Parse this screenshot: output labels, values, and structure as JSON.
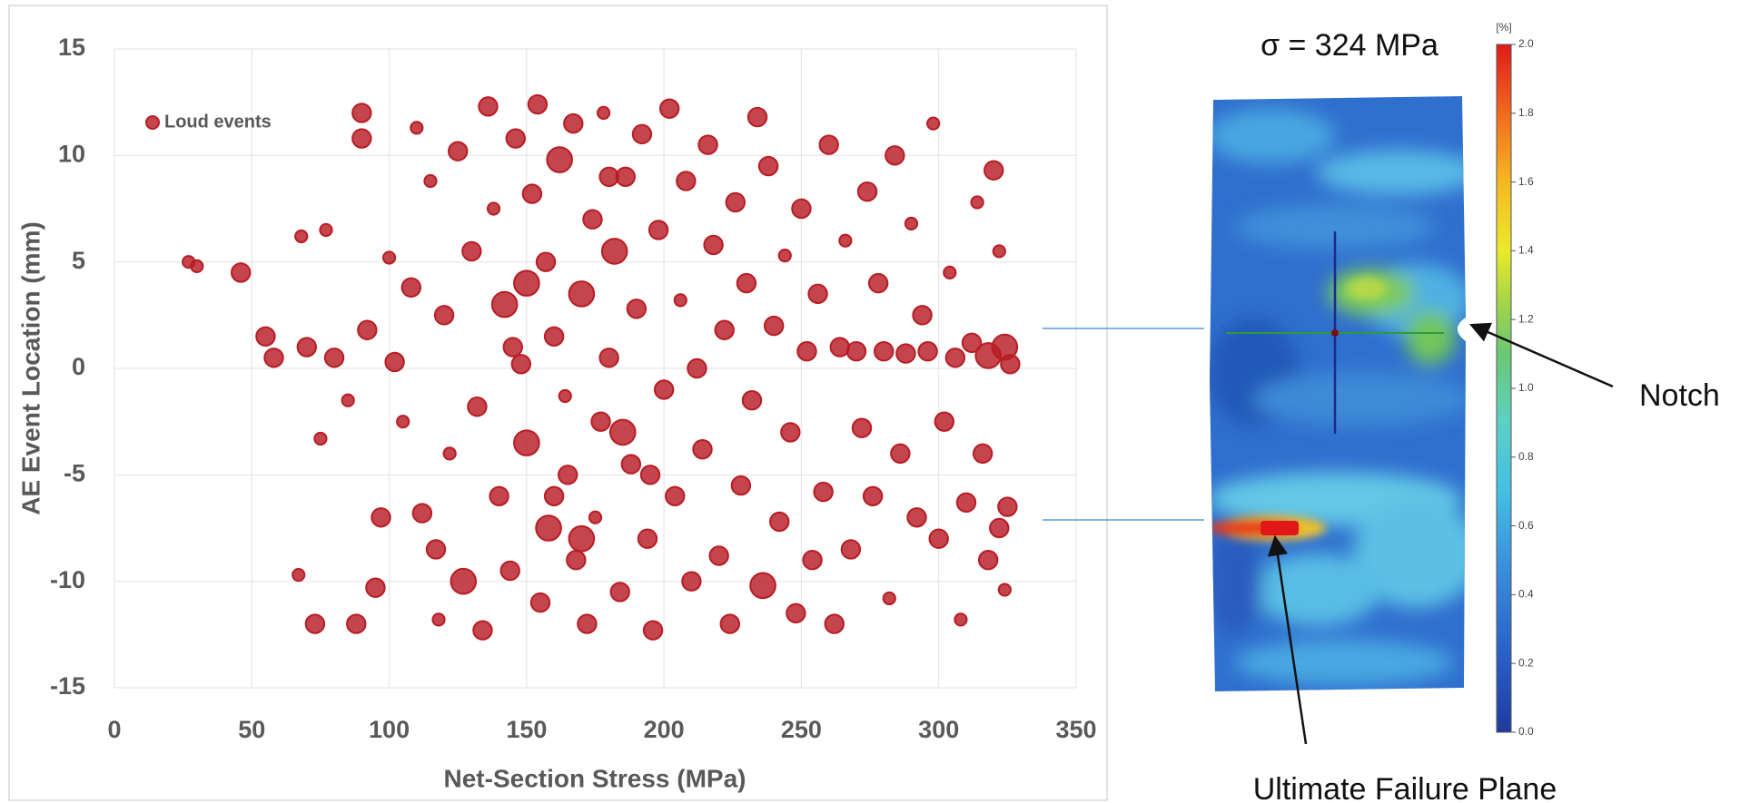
{
  "chart_data": [
    {
      "type": "scatter",
      "xlabel": "Net-Section Stress (MPa)",
      "ylabel": "AE Event Location (mm)",
      "xlim": [
        0,
        350
      ],
      "xticks": [
        0,
        50,
        100,
        150,
        200,
        250,
        300,
        350
      ],
      "ylim": [
        -15,
        15
      ],
      "yticks": [
        -15,
        -10,
        -5,
        0,
        5,
        10,
        15
      ],
      "grid": true,
      "legend": "upper left",
      "series": [
        {
          "name": "Loud events",
          "color": "#b81c24",
          "x": [
            27,
            30,
            46,
            55,
            58,
            68,
            67,
            70,
            73,
            75,
            77,
            80,
            85,
            88,
            90,
            90,
            92,
            95,
            97,
            100,
            102,
            105,
            108,
            110,
            112,
            115,
            117,
            118,
            120,
            122,
            125,
            127,
            130,
            132,
            134,
            136,
            138,
            140,
            142,
            144,
            146,
            148,
            150,
            152,
            154,
            155,
            157,
            158,
            160,
            162,
            164,
            165,
            167,
            168,
            170,
            172,
            174,
            175,
            177,
            178,
            180,
            182,
            184,
            186,
            188,
            190,
            192,
            194,
            196,
            198,
            200,
            202,
            204,
            206,
            208,
            210,
            212,
            214,
            216,
            218,
            220,
            222,
            224,
            226,
            228,
            230,
            232,
            234,
            236,
            238,
            240,
            242,
            244,
            246,
            248,
            250,
            252,
            254,
            256,
            258,
            260,
            262,
            264,
            266,
            268,
            270,
            272,
            274,
            276,
            278,
            280,
            282,
            284,
            286,
            288,
            290,
            292,
            294,
            296,
            298,
            300,
            302,
            304,
            306,
            308,
            310,
            312,
            314,
            316,
            318,
            320,
            322,
            324,
            325,
            326,
            318,
            322,
            324,
            150,
            160,
            170,
            180,
            145,
            185,
            195
          ],
          "values": [
            5,
            4.8,
            4.5,
            1.5,
            0.5,
            6.2,
            -9.7,
            1,
            -12,
            -3.3,
            6.5,
            0.5,
            -1.5,
            -12,
            12,
            10.8,
            1.8,
            -10.3,
            -7,
            5.2,
            0.3,
            -2.5,
            3.8,
            11.3,
            -6.8,
            8.8,
            -8.5,
            -11.8,
            2.5,
            -4,
            10.2,
            -10,
            5.5,
            -1.8,
            -12.3,
            12.3,
            7.5,
            -6,
            3,
            -9.5,
            10.8,
            0.2,
            -3.5,
            8.2,
            12.4,
            -11,
            5,
            -7.5,
            1.5,
            9.8,
            -1.3,
            -5,
            11.5,
            -9,
            3.5,
            -12,
            7,
            -7,
            -2.5,
            12,
            0.5,
            5.5,
            -10.5,
            9,
            -4.5,
            2.8,
            11,
            -8,
            -12.3,
            6.5,
            -1,
            12.2,
            -6,
            3.2,
            8.8,
            -10,
            0,
            -3.8,
            10.5,
            5.8,
            -8.8,
            1.8,
            -12,
            7.8,
            -5.5,
            4,
            -1.5,
            11.8,
            -10.2,
            9.5,
            2,
            -7.2,
            5.3,
            -3,
            -11.5,
            7.5,
            0.8,
            -9,
            3.5,
            -5.8,
            10.5,
            -12,
            1,
            6,
            -8.5,
            0.8,
            -2.8,
            8.3,
            -6,
            4,
            0.8,
            -10.8,
            10,
            -4,
            0.7,
            6.8,
            -7,
            2.5,
            0.8,
            11.5,
            -8,
            -2.5,
            4.5,
            0.5,
            -11.8,
            -6.3,
            1.2,
            7.8,
            -4,
            0.6,
            9.3,
            -7.5,
            1,
            -6.5,
            0.2,
            -9,
            5.5,
            -10.4,
            4,
            -6,
            -8,
            9,
            1,
            -3,
            -5
          ],
          "sizes": [
            1,
            1,
            2,
            2,
            2,
            1,
            1,
            2,
            2,
            1,
            1,
            2,
            1,
            2,
            2,
            2,
            2,
            2,
            2,
            1,
            2,
            1,
            2,
            1,
            2,
            1,
            2,
            1,
            2,
            1,
            2,
            3,
            2,
            2,
            2,
            2,
            1,
            2,
            3,
            2,
            2,
            2,
            3,
            2,
            2,
            2,
            2,
            3,
            2,
            3,
            1,
            2,
            2,
            2,
            3,
            2,
            2,
            1,
            2,
            1,
            2,
            3,
            2,
            2,
            2,
            2,
            2,
            2,
            2,
            2,
            2,
            2,
            2,
            1,
            2,
            2,
            2,
            2,
            2,
            2,
            2,
            2,
            2,
            2,
            2,
            2,
            2,
            2,
            3,
            2,
            2,
            2,
            1,
            2,
            2,
            2,
            2,
            2,
            2,
            2,
            2,
            2,
            2,
            1,
            2,
            2,
            2,
            2,
            2,
            2,
            2,
            1,
            2,
            2,
            2,
            1,
            2,
            2,
            2,
            1,
            2,
            2,
            1,
            2,
            1,
            2,
            2,
            1,
            2,
            3,
            2,
            2,
            3,
            2,
            2,
            2,
            1,
            1,
            3,
            2,
            3,
            2,
            2,
            3,
            2
          ]
        }
      ]
    },
    {
      "type": "strain-map",
      "title": "σ = 324 MPa",
      "colorbar": {
        "label": "[%]",
        "lim": [
          0,
          2
        ],
        "ticks": [
          {
            "value": 0,
            "label": "0.0"
          },
          {
            "value": 0.2,
            "label": "0.2"
          },
          {
            "value": 0.4,
            "label": "0.4"
          },
          {
            "value": 0.6,
            "label": "0.6"
          },
          {
            "value": 0.8,
            "label": "0.8"
          },
          {
            "value": 1,
            "label": "1.0"
          },
          {
            "value": 1.2,
            "label": "1.2"
          },
          {
            "value": 1.4,
            "label": "1.4"
          },
          {
            "value": 1.6,
            "label": "1.6"
          },
          {
            "value": 1.8,
            "label": "1.8"
          },
          {
            "value": 2,
            "label": "2.0"
          }
        ]
      },
      "annotations": [
        "Notch",
        "Ultimate Failure Plane"
      ]
    }
  ]
}
